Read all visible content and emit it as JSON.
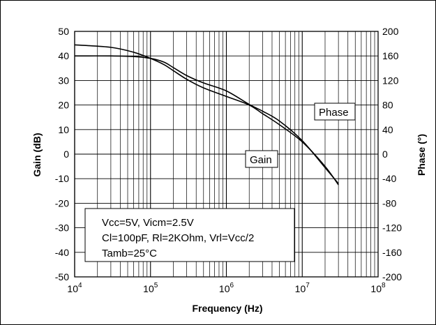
{
  "chart_data": {
    "type": "line",
    "xlabel": "Frequency (Hz)",
    "ylabel": "Gain (dB)",
    "y2label": "Phase (°)",
    "x_scale": "log",
    "xlim": [
      10000,
      100000000
    ],
    "ylim": [
      -50,
      50
    ],
    "y2lim": [
      -200,
      200
    ],
    "grid": true,
    "x_ticks": [
      {
        "base": "10",
        "exp": "4"
      },
      {
        "base": "10",
        "exp": "5"
      },
      {
        "base": "10",
        "exp": "6"
      },
      {
        "base": "10",
        "exp": "7"
      },
      {
        "base": "10",
        "exp": "8"
      }
    ],
    "y_ticks": [
      "50",
      "40",
      "30",
      "20",
      "10",
      "0",
      "-10",
      "-20",
      "-30",
      "-40",
      "-50"
    ],
    "y2_ticks": [
      "200",
      "160",
      "120",
      "80",
      "40",
      "0",
      "-40",
      "-80",
      "-120",
      "-160",
      "-200"
    ],
    "series": [
      {
        "name": "Gain",
        "axis": "left",
        "x": [
          10000,
          30000,
          60000,
          100000,
          150000,
          200000,
          300000,
          500000,
          1000000,
          2000000,
          3000000,
          5000000,
          10000000,
          20000000,
          30000000
        ],
        "y": [
          44.5,
          43.5,
          41.5,
          39,
          36.5,
          34,
          30.5,
          27,
          23.5,
          20,
          16.5,
          12,
          5,
          -5,
          -12.5
        ]
      },
      {
        "name": "Phase",
        "axis": "right",
        "x": [
          10000,
          30000,
          60000,
          100000,
          150000,
          200000,
          300000,
          500000,
          1000000,
          2000000,
          3000000,
          5000000,
          10000000,
          20000000,
          30000000
        ],
        "y": [
          160,
          160,
          159,
          156,
          150,
          141,
          128,
          116,
          103,
          81,
          70,
          54,
          22,
          -22,
          -48
        ]
      }
    ],
    "annotations": {
      "conditions": [
        "Vcc=5V, Vicm=2.5V",
        "Cl=100pF, Rl=2KOhm, Vrl=Vcc/2",
        "Tamb=25°C"
      ],
      "phase_label": "Phase",
      "gain_label": "Gain"
    }
  }
}
